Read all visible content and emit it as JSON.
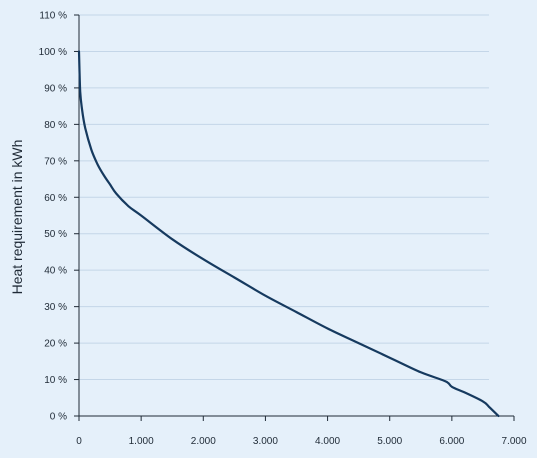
{
  "chart_data": {
    "type": "line",
    "title": "",
    "xlabel": "",
    "ylabel": "Heat requirement in kWh",
    "xlim": [
      0,
      7000
    ],
    "ylim": [
      0,
      110
    ],
    "grid": true,
    "x_ticks": [
      0,
      1000,
      2000,
      3000,
      4000,
      5000,
      6000,
      7000
    ],
    "x_tick_labels": [
      "0",
      "1.000",
      "2.000",
      "3.000",
      "4.000",
      "5.000",
      "6.000",
      "7.000"
    ],
    "y_ticks": [
      0,
      10,
      20,
      30,
      40,
      50,
      60,
      70,
      80,
      90,
      100,
      110
    ],
    "y_tick_labels": [
      "0 %",
      "10 %",
      "20 %",
      "30 %",
      "40 %",
      "50 %",
      "60 %",
      "70 %",
      "80 %",
      "90 %",
      "100 %",
      "110 %"
    ],
    "line_color": "#163a5f",
    "series": [
      {
        "x": [
          0,
          20,
          50,
          100,
          200,
          300,
          400,
          500,
          600,
          800,
          1000,
          1500,
          2000,
          2500,
          3000,
          3500,
          4000,
          4500,
          5000,
          5500,
          5900,
          6000,
          6200,
          6500,
          6600,
          6750
        ],
        "values": [
          100,
          89,
          84,
          79,
          73,
          69,
          66,
          63.5,
          61,
          57.5,
          55,
          48.5,
          43,
          38,
          33,
          28.5,
          24,
          20,
          16,
          12,
          9.5,
          8,
          6.5,
          4,
          2.5,
          0
        ]
      }
    ]
  },
  "colors": {
    "background": "#e5f0fa",
    "grid": "#c4d6e8",
    "axis": "#1f2a36",
    "text": "#1f2a36"
  }
}
